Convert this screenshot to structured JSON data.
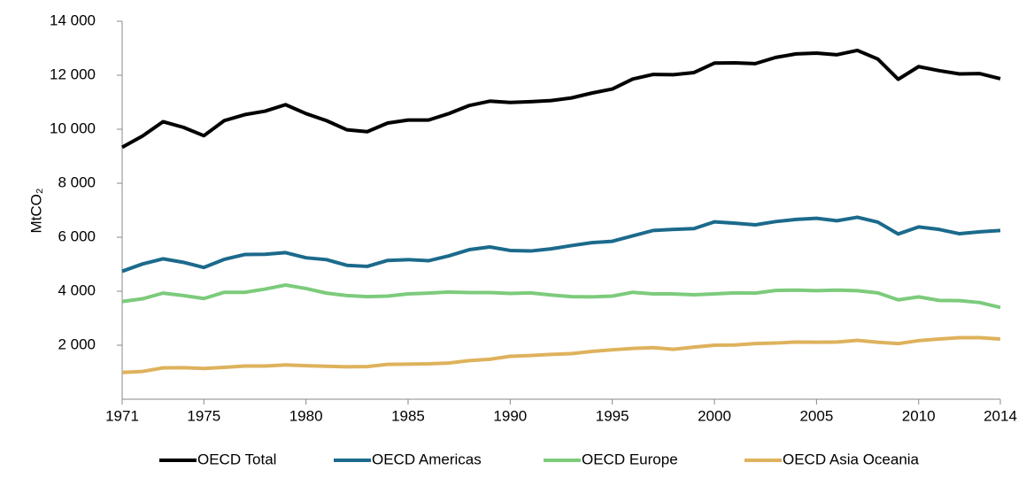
{
  "chart_data": {
    "type": "line",
    "ylabel": "MtCO₂",
    "x": [
      1971,
      1972,
      1973,
      1974,
      1975,
      1976,
      1977,
      1978,
      1979,
      1980,
      1981,
      1982,
      1983,
      1984,
      1985,
      1986,
      1987,
      1988,
      1989,
      1990,
      1991,
      1992,
      1993,
      1994,
      1995,
      1996,
      1997,
      1998,
      1999,
      2000,
      2001,
      2002,
      2003,
      2004,
      2005,
      2006,
      2007,
      2008,
      2009,
      2010,
      2011,
      2012,
      2013,
      2014
    ],
    "xlim": [
      1971,
      2014
    ],
    "xticks": [
      1971,
      1975,
      1980,
      1985,
      1990,
      1995,
      2000,
      2005,
      2010,
      2014
    ],
    "ylim": [
      0,
      14000
    ],
    "yticks": [
      {
        "value": 2000,
        "label": "2 000"
      },
      {
        "value": 4000,
        "label": "4 000"
      },
      {
        "value": 6000,
        "label": "6 000"
      },
      {
        "value": 8000,
        "label": "8 000"
      },
      {
        "value": 10000,
        "label": "10 000"
      },
      {
        "value": 12000,
        "label": "12 000"
      },
      {
        "value": 14000,
        "label": "14 000"
      }
    ],
    "grid": false,
    "legend": "bottom",
    "series": [
      {
        "name": "OECD Total",
        "color": "#000000",
        "values": [
          9330,
          9750,
          10280,
          10070,
          9760,
          10320,
          10540,
          10670,
          10910,
          10580,
          10320,
          9980,
          9910,
          10230,
          10340,
          10340,
          10580,
          10880,
          11040,
          10990,
          11020,
          11060,
          11160,
          11340,
          11490,
          11860,
          12030,
          12020,
          12100,
          12450,
          12460,
          12430,
          12660,
          12790,
          12820,
          12760,
          12920,
          12600,
          11850,
          12320,
          12170,
          12050,
          12060,
          11870
        ]
      },
      {
        "name": "OECD Americas",
        "color": "#1b6a8c",
        "values": [
          4740,
          5010,
          5200,
          5070,
          4880,
          5180,
          5360,
          5370,
          5430,
          5240,
          5170,
          4960,
          4920,
          5140,
          5170,
          5130,
          5310,
          5540,
          5640,
          5510,
          5490,
          5570,
          5690,
          5800,
          5850,
          6050,
          6250,
          6290,
          6320,
          6570,
          6520,
          6460,
          6580,
          6660,
          6700,
          6610,
          6740,
          6560,
          6120,
          6380,
          6290,
          6130,
          6200,
          6250
        ]
      },
      {
        "name": "OECD Europe",
        "color": "#7ccb7c",
        "values": [
          3620,
          3720,
          3930,
          3840,
          3730,
          3960,
          3960,
          4080,
          4230,
          4100,
          3930,
          3840,
          3800,
          3820,
          3900,
          3930,
          3970,
          3950,
          3950,
          3920,
          3940,
          3860,
          3800,
          3790,
          3820,
          3960,
          3900,
          3900,
          3870,
          3900,
          3940,
          3930,
          4030,
          4040,
          4020,
          4040,
          4020,
          3940,
          3680,
          3790,
          3660,
          3650,
          3580,
          3400
        ]
      },
      {
        "name": "OECD Asia Oceania",
        "color": "#deb25c",
        "values": [
          990,
          1030,
          1160,
          1170,
          1140,
          1180,
          1230,
          1230,
          1270,
          1240,
          1220,
          1200,
          1210,
          1290,
          1300,
          1310,
          1340,
          1430,
          1480,
          1590,
          1620,
          1660,
          1690,
          1770,
          1830,
          1880,
          1910,
          1850,
          1930,
          2000,
          2010,
          2060,
          2080,
          2120,
          2110,
          2120,
          2180,
          2110,
          2060,
          2170,
          2230,
          2280,
          2280,
          2230
        ]
      }
    ]
  }
}
